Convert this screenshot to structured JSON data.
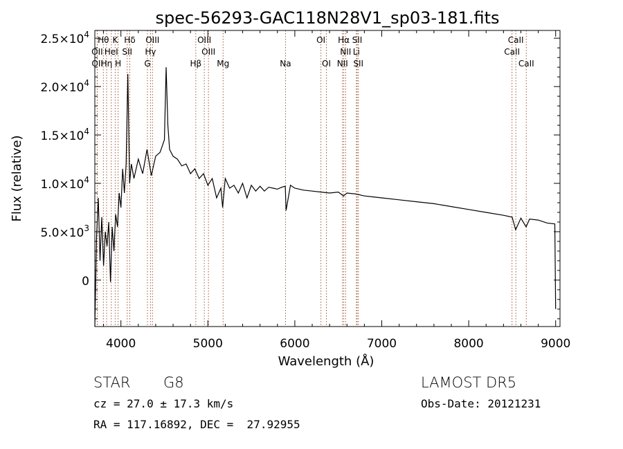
{
  "chart_data": {
    "type": "line",
    "title": "spec-56293-GAC118N28V1_sp03-181.fits",
    "xlabel": "Wavelength (Å)",
    "ylabel": "Flux (relative)",
    "xlim": [
      3700,
      9050
    ],
    "ylim": [
      -4800,
      25800
    ],
    "xticks": [
      {
        "value": 4000,
        "label": "4000"
      },
      {
        "value": 5000,
        "label": "5000"
      },
      {
        "value": 6000,
        "label": "6000"
      },
      {
        "value": 7000,
        "label": "7000"
      },
      {
        "value": 8000,
        "label": "8000"
      },
      {
        "value": 9000,
        "label": "9000"
      }
    ],
    "yticks": [
      {
        "value": 0,
        "mantissa": "0",
        "exp": ""
      },
      {
        "value": 5000,
        "mantissa": "5.0×10",
        "exp": "3"
      },
      {
        "value": 10000,
        "mantissa": "1.0×10",
        "exp": "4"
      },
      {
        "value": 15000,
        "mantissa": "1.5×10",
        "exp": "4"
      },
      {
        "value": 20000,
        "mantissa": "2.0×10",
        "exp": "4"
      },
      {
        "value": 25000,
        "mantissa": "2.5×10",
        "exp": "4"
      }
    ],
    "grid": false,
    "legend": "none",
    "line_color": "#000000",
    "marker_color": "#a0522d",
    "series": [
      {
        "x": [
          3700,
          3720,
          3740,
          3760,
          3780,
          3800,
          3820,
          3840,
          3860,
          3880,
          3900,
          3920,
          3940,
          3960,
          3980,
          4000,
          4020,
          4040,
          4060,
          4080,
          4100,
          4120,
          4150,
          4200,
          4250,
          4300,
          4350,
          4400,
          4450,
          4500,
          4520,
          4540,
          4560,
          4600,
          4650,
          4700,
          4750,
          4800,
          4850,
          4900,
          4950,
          5000,
          5050,
          5100,
          5150,
          5170,
          5200,
          5250,
          5300,
          5350,
          5400,
          5450,
          5500,
          5550,
          5600,
          5650,
          5700,
          5750,
          5800,
          5850,
          5890,
          5900,
          5950,
          6000,
          6100,
          6200,
          6300,
          6400,
          6500,
          6560,
          6600,
          6700,
          6800,
          6900,
          7000,
          7200,
          7400,
          7600,
          7800,
          8000,
          8200,
          8400,
          8500,
          8540,
          8600,
          8660,
          8700,
          8800,
          8900,
          8990,
          9000
        ],
        "y": [
          -4800,
          4500,
          8500,
          2000,
          6500,
          1500,
          5000,
          3500,
          6000,
          -200,
          5500,
          3000,
          6800,
          5500,
          9000,
          7500,
          11500,
          9000,
          12000,
          21300,
          10000,
          12000,
          10500,
          12500,
          11000,
          13500,
          10800,
          12800,
          13200,
          14500,
          22000,
          16000,
          13500,
          12800,
          12500,
          11800,
          12000,
          11000,
          11500,
          10500,
          11000,
          9800,
          10500,
          8500,
          9500,
          7500,
          10500,
          9500,
          9800,
          9000,
          10000,
          8500,
          9800,
          9200,
          9700,
          9200,
          9600,
          9500,
          9400,
          9600,
          9700,
          7200,
          9800,
          9500,
          9300,
          9200,
          9100,
          9000,
          9100,
          8700,
          9000,
          8900,
          8700,
          8600,
          8500,
          8300,
          8100,
          7900,
          7600,
          7300,
          7000,
          6700,
          6500,
          5200,
          6400,
          5500,
          6300,
          6200,
          5900,
          5800,
          -3000
        ]
      }
    ],
    "lines": [
      {
        "label": "Hθ",
        "x": 3798,
        "row": 1
      },
      {
        "label": "K",
        "x": 3934,
        "row": 1
      },
      {
        "label": "Hδ",
        "x": 4102,
        "row": 1
      },
      {
        "label": "OIII",
        "x": 4363,
        "row": 1
      },
      {
        "label": "OIII",
        "x": 4959,
        "row": 1
      },
      {
        "label": "OI",
        "x": 6300,
        "row": 1
      },
      {
        "label": "Hα",
        "x": 6563,
        "row": 1
      },
      {
        "label": "SII",
        "x": 6717,
        "row": 1
      },
      {
        "label": "CaII",
        "x": 8542,
        "row": 1
      },
      {
        "label": "OII",
        "x": 3727,
        "row": 2
      },
      {
        "label": "HeI",
        "x": 3889,
        "row": 2
      },
      {
        "label": "SII",
        "x": 4072,
        "row": 2
      },
      {
        "label": "Hγ",
        "x": 4340,
        "row": 2
      },
      {
        "label": "OIII",
        "x": 5007,
        "row": 2
      },
      {
        "label": "NII",
        "x": 6584,
        "row": 2
      },
      {
        "label": "Li",
        "x": 6708,
        "row": 2
      },
      {
        "label": "CaII",
        "x": 8498,
        "row": 2
      },
      {
        "label": "OII",
        "x": 3729,
        "row": 3
      },
      {
        "label": "Hη",
        "x": 3835,
        "row": 3
      },
      {
        "label": "H",
        "x": 3968,
        "row": 3
      },
      {
        "label": "G",
        "x": 4305,
        "row": 3
      },
      {
        "label": "Hβ",
        "x": 4861,
        "row": 3
      },
      {
        "label": "Mg",
        "x": 5175,
        "row": 3
      },
      {
        "label": "Na",
        "x": 5893,
        "row": 3
      },
      {
        "label": "OI",
        "x": 6363,
        "row": 3
      },
      {
        "label": "NII",
        "x": 6548,
        "row": 3
      },
      {
        "label": "SII",
        "x": 6731,
        "row": 3
      },
      {
        "label": "CaII",
        "x": 8662,
        "row": 3
      }
    ]
  },
  "info": {
    "object_class": "STAR",
    "subclass": "G8",
    "survey": "LAMOST DR5",
    "redshift": "cz = 27.0 ± 17.3 km/s",
    "obs_date": "Obs-Date: 20121231",
    "coords": "RA = 117.16892, DEC =  27.92955"
  }
}
